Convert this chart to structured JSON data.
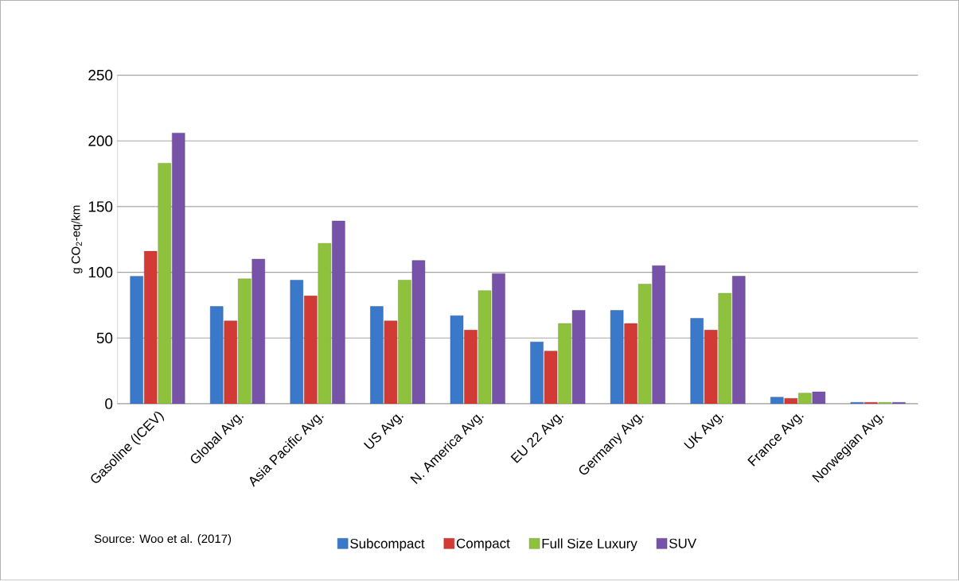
{
  "chart_data": {
    "type": "bar",
    "ylabel": "g CO$_{2}$-eq/km",
    "categories": [
      "Gasoline (ICEV)",
      "Global Avg.",
      "Asia Pacific Avg.",
      "US Avg.",
      "N. America Avg.",
      "EU 22 Avg.",
      "Germany Avg.",
      "UK Avg.",
      "France Avg.",
      "Norwegian Avg."
    ],
    "series": [
      {
        "name": "Subcompact",
        "color": "#3a78c9",
        "values": [
          97,
          74,
          94,
          74,
          67,
          47,
          71,
          65,
          5,
          1
        ]
      },
      {
        "name": "Compact",
        "color": "#d23a36",
        "values": [
          116,
          63,
          82,
          63,
          56,
          40,
          61,
          56,
          4,
          1
        ]
      },
      {
        "name": "Full Size Luxury",
        "color": "#8fc23c",
        "values": [
          183,
          95,
          122,
          94,
          86,
          61,
          91,
          84,
          8,
          1
        ]
      },
      {
        "name": "SUV",
        "color": "#7652a8",
        "values": [
          206,
          110,
          139,
          109,
          99,
          71,
          105,
          97,
          9,
          1
        ]
      }
    ],
    "ylim": [
      0,
      250
    ],
    "yticks": [
      0,
      50,
      100,
      150,
      200,
      250
    ],
    "grid": "y",
    "legend": "bottom",
    "annotations": [
      "Source: Woo et al. (2017)"
    ]
  }
}
